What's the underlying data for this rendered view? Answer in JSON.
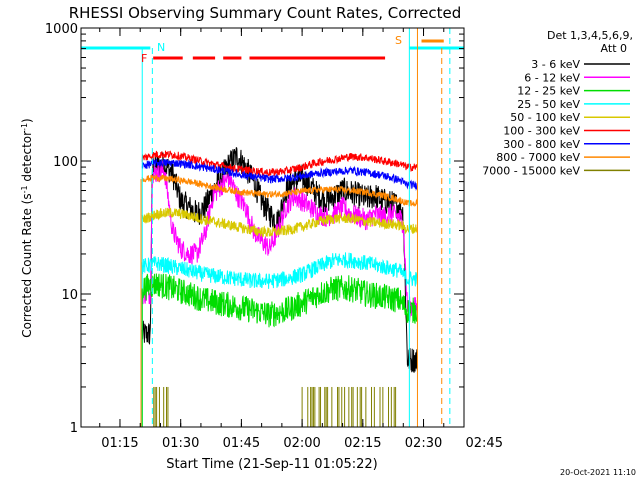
{
  "chart_data": {
    "type": "line",
    "title": "RHESSI Observing Summary Count Rates, Corrected",
    "xlabel": "Start Time (21-Sep-11 01:05:22)",
    "ylabel_main": "Corrected Count Rate (s",
    "ylabel_sup1": "-1",
    "ylabel_mid": " detector",
    "ylabel_sup2": "-1",
    "ylabel_end": ")",
    "yscale": "log",
    "ylim": [
      1,
      1000
    ],
    "xlim_minutes": [
      5.37,
      100
    ],
    "ytick_labels": [
      {
        "value": 1,
        "label": "1"
      },
      {
        "value": 10,
        "label": "10"
      },
      {
        "value": 100,
        "label": "100"
      },
      {
        "value": 1000,
        "label": "1000"
      }
    ],
    "xtick_labels": [
      {
        "value": 15,
        "label": "01:15"
      },
      {
        "value": 30,
        "label": "01:30"
      },
      {
        "value": 45,
        "label": "01:45"
      },
      {
        "value": 60,
        "label": "02:00"
      },
      {
        "value": 75,
        "label": "02:15"
      },
      {
        "value": 90,
        "label": "02:30"
      },
      {
        "value": 105,
        "label": "02:45"
      }
    ],
    "legend_header": [
      "Det 1,3,4,5,6,9,",
      "Att 0"
    ],
    "legend_position": "right",
    "series": [
      {
        "name": "3 - 6 keV",
        "color": "#000000",
        "start": 20.5,
        "end": 88.5,
        "pts": [
          [
            20.5,
            5
          ],
          [
            22.5,
            5
          ],
          [
            23,
            90
          ],
          [
            26,
            95
          ],
          [
            28,
            80
          ],
          [
            30,
            50
          ],
          [
            32,
            45
          ],
          [
            34,
            40
          ],
          [
            36,
            45
          ],
          [
            38,
            60
          ],
          [
            40,
            75
          ],
          [
            42,
            95
          ],
          [
            44,
            110
          ],
          [
            46,
            90
          ],
          [
            48,
            70
          ],
          [
            50,
            50
          ],
          [
            52,
            40
          ],
          [
            54,
            35
          ],
          [
            56,
            60
          ],
          [
            58,
            70
          ],
          [
            60,
            75
          ],
          [
            62,
            65
          ],
          [
            64,
            55
          ],
          [
            66,
            50
          ],
          [
            68,
            55
          ],
          [
            70,
            60
          ],
          [
            72,
            58
          ],
          [
            74,
            55
          ],
          [
            76,
            52
          ],
          [
            78,
            55
          ],
          [
            80,
            50
          ],
          [
            82,
            48
          ],
          [
            84,
            46
          ],
          [
            85,
            40
          ],
          [
            86,
            3.2
          ],
          [
            88.5,
            3.2
          ]
        ]
      },
      {
        "name": "6 - 12 keV",
        "color": "#ff00ff",
        "start": 20.5,
        "end": 88.5,
        "pts": [
          [
            20.5,
            10
          ],
          [
            22.5,
            10
          ],
          [
            23,
            80
          ],
          [
            26,
            85
          ],
          [
            28,
            30
          ],
          [
            30,
            22
          ],
          [
            32,
            20
          ],
          [
            34,
            20
          ],
          [
            36,
            28
          ],
          [
            38,
            55
          ],
          [
            40,
            65
          ],
          [
            42,
            75
          ],
          [
            44,
            55
          ],
          [
            46,
            45
          ],
          [
            48,
            30
          ],
          [
            50,
            25
          ],
          [
            52,
            22
          ],
          [
            54,
            30
          ],
          [
            56,
            45
          ],
          [
            58,
            55
          ],
          [
            60,
            50
          ],
          [
            62,
            45
          ],
          [
            64,
            40
          ],
          [
            66,
            38
          ],
          [
            68,
            40
          ],
          [
            70,
            45
          ],
          [
            72,
            40
          ],
          [
            74,
            38
          ],
          [
            76,
            36
          ],
          [
            78,
            40
          ],
          [
            80,
            38
          ],
          [
            82,
            40
          ],
          [
            84,
            38
          ],
          [
            85,
            34
          ],
          [
            86,
            8
          ],
          [
            88.5,
            8
          ]
        ]
      },
      {
        "name": "12 - 25 keV",
        "color": "#00dd00",
        "start": 20.5,
        "end": 88.5,
        "pts": [
          [
            20.5,
            11
          ],
          [
            24,
            12
          ],
          [
            28,
            11
          ],
          [
            32,
            10
          ],
          [
            36,
            9
          ],
          [
            40,
            8.5
          ],
          [
            44,
            8
          ],
          [
            48,
            7.5
          ],
          [
            52,
            7
          ],
          [
            56,
            7.5
          ],
          [
            60,
            8.5
          ],
          [
            64,
            10
          ],
          [
            68,
            11
          ],
          [
            72,
            11
          ],
          [
            76,
            10
          ],
          [
            80,
            9.5
          ],
          [
            84,
            9
          ],
          [
            86,
            7.5
          ],
          [
            88.5,
            7.5
          ]
        ]
      },
      {
        "name": "25 - 50 keV",
        "color": "#00ffff",
        "start": 20.5,
        "end": 88.5,
        "pts": [
          [
            20.5,
            16
          ],
          [
            24,
            17
          ],
          [
            28,
            16
          ],
          [
            32,
            15
          ],
          [
            36,
            14
          ],
          [
            40,
            13.5
          ],
          [
            44,
            13
          ],
          [
            48,
            12.5
          ],
          [
            52,
            12.5
          ],
          [
            56,
            13
          ],
          [
            60,
            14
          ],
          [
            64,
            16
          ],
          [
            68,
            18
          ],
          [
            72,
            18
          ],
          [
            76,
            17
          ],
          [
            80,
            16
          ],
          [
            84,
            15
          ],
          [
            86,
            13
          ],
          [
            88.5,
            13
          ]
        ]
      },
      {
        "name": "50 - 100 keV",
        "color": "#d8c800",
        "start": 20.5,
        "end": 88.5,
        "pts": [
          [
            20.5,
            36
          ],
          [
            24,
            40
          ],
          [
            28,
            41
          ],
          [
            32,
            39
          ],
          [
            36,
            36
          ],
          [
            40,
            34
          ],
          [
            44,
            32
          ],
          [
            48,
            30
          ],
          [
            52,
            29
          ],
          [
            56,
            30
          ],
          [
            60,
            32
          ],
          [
            64,
            35
          ],
          [
            68,
            37
          ],
          [
            72,
            37
          ],
          [
            76,
            35
          ],
          [
            80,
            34
          ],
          [
            84,
            33
          ],
          [
            86,
            31
          ],
          [
            88.5,
            31
          ]
        ]
      },
      {
        "name": "100 - 300 keV",
        "color": "#ff0000",
        "start": 20.5,
        "end": 88.5,
        "pts": [
          [
            20.5,
            105
          ],
          [
            24,
            112
          ],
          [
            28,
            112
          ],
          [
            32,
            105
          ],
          [
            36,
            98
          ],
          [
            40,
            92
          ],
          [
            44,
            87
          ],
          [
            48,
            84
          ],
          [
            52,
            82
          ],
          [
            56,
            84
          ],
          [
            60,
            90
          ],
          [
            64,
            98
          ],
          [
            68,
            103
          ],
          [
            72,
            108
          ],
          [
            76,
            106
          ],
          [
            80,
            100
          ],
          [
            84,
            95
          ],
          [
            86,
            90
          ],
          [
            88.5,
            90
          ]
        ]
      },
      {
        "name": "300 - 800 keV",
        "color": "#0000ff",
        "start": 20.5,
        "end": 88.5,
        "pts": [
          [
            20.5,
            92
          ],
          [
            24,
            97
          ],
          [
            28,
            97
          ],
          [
            32,
            94
          ],
          [
            36,
            89
          ],
          [
            40,
            85
          ],
          [
            44,
            80
          ],
          [
            48,
            76
          ],
          [
            52,
            73
          ],
          [
            56,
            74
          ],
          [
            60,
            77
          ],
          [
            64,
            81
          ],
          [
            68,
            83
          ],
          [
            72,
            85
          ],
          [
            76,
            82
          ],
          [
            80,
            78
          ],
          [
            84,
            72
          ],
          [
            86,
            66
          ],
          [
            88.5,
            66
          ]
        ]
      },
      {
        "name": "800 - 7000 keV",
        "color": "#ff8800",
        "start": 20.5,
        "end": 88.5,
        "pts": [
          [
            20.5,
            73
          ],
          [
            24,
            75
          ],
          [
            28,
            73
          ],
          [
            32,
            70
          ],
          [
            36,
            66
          ],
          [
            40,
            62
          ],
          [
            44,
            59
          ],
          [
            48,
            57
          ],
          [
            52,
            56
          ],
          [
            56,
            57
          ],
          [
            60,
            59
          ],
          [
            64,
            61
          ],
          [
            68,
            61
          ],
          [
            72,
            60
          ],
          [
            76,
            58
          ],
          [
            80,
            55
          ],
          [
            84,
            51
          ],
          [
            86,
            48
          ],
          [
            88.5,
            48
          ]
        ]
      },
      {
        "name": "7000 - 15000 keV",
        "color": "#808000",
        "start": 20.5,
        "end": 88.5,
        "pts": []
      }
    ],
    "flag_lines": {
      "night": {
        "label": "N",
        "color": "#00ffff",
        "x": [
          20.5,
          23,
          86.5,
          88.5,
          96.5
        ]
      },
      "saa": {
        "label": "S",
        "color": "#ff8800",
        "x": [
          88.5,
          94.5
        ]
      },
      "flare": {
        "label": "F",
        "color": "#ff0000"
      }
    },
    "flag_bars": {
      "night_bars": [
        [
          5.37,
          22.5
        ],
        [
          86.5,
          100
        ]
      ],
      "saa_bar": [
        89.5,
        95
      ],
      "flare_bars": [
        [
          23.2,
          30.5
        ],
        [
          33,
          38.5
        ],
        [
          40.5,
          45
        ],
        [
          47,
          80.5
        ]
      ]
    },
    "stamp": "20-Oct-2021 11:10"
  }
}
